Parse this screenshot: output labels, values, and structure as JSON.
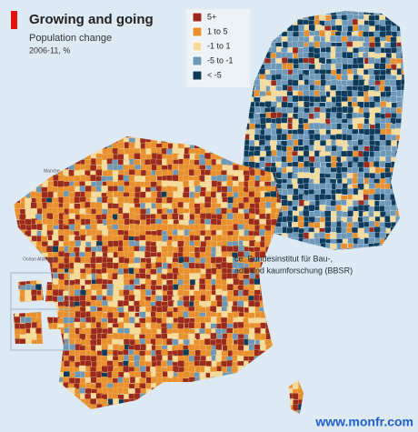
{
  "header": {
    "title": "Growing and going",
    "subtitle": "Population change",
    "period": "2006-11, %"
  },
  "legend": [
    {
      "label": "5+",
      "color": "#9b2a1e"
    },
    {
      "label": "1 to 5",
      "color": "#e8902e"
    },
    {
      "label": "-1 to 1",
      "color": "#f5dc9c"
    },
    {
      "label": "-5 to -1",
      "color": "#6d98b7"
    },
    {
      "label": "< -5",
      "color": "#0e3b5a"
    }
  ],
  "map_labels": {
    "sea_north": "Manche",
    "sea_west": "Océan Atlantique"
  },
  "source": [
    "ce: Bundesinstitut für Bau-,",
    "adt- und kaumforschung (BBSR)"
  ],
  "watermark": "www.monfr.com"
}
